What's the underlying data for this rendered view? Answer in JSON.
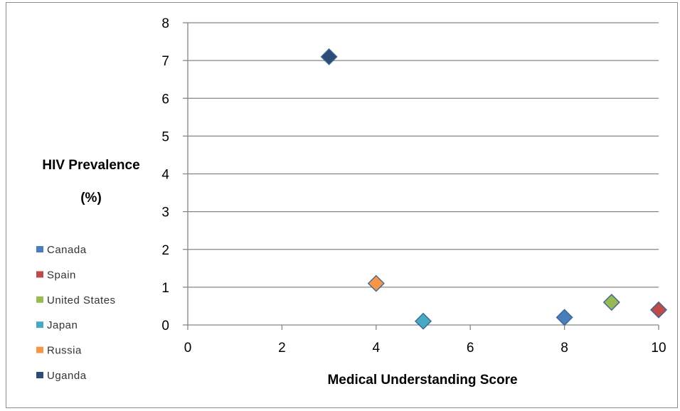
{
  "chart_data": {
    "type": "scatter",
    "title": "",
    "xlabel": "Medical Understanding Score",
    "ylabel_lines": [
      "HIV Prevalence",
      "(%)"
    ],
    "xlim": [
      0,
      10
    ],
    "ylim": [
      0,
      8
    ],
    "x_ticks": [
      "0",
      "2",
      "4",
      "6",
      "8",
      "10"
    ],
    "y_ticks": [
      "0",
      "1",
      "2",
      "3",
      "4",
      "5",
      "6",
      "7",
      "8"
    ],
    "grid": "horizontal",
    "legend_position": "left",
    "series": [
      {
        "name": "Canada",
        "color": "#4a7ebb",
        "points": [
          {
            "x": 8,
            "y": 0.2
          }
        ]
      },
      {
        "name": "Spain",
        "color": "#be4b48",
        "points": [
          {
            "x": 10,
            "y": 0.4
          }
        ]
      },
      {
        "name": "United States",
        "color": "#98b954",
        "points": [
          {
            "x": 9,
            "y": 0.6
          }
        ]
      },
      {
        "name": "Japan",
        "color": "#46aac5",
        "points": [
          {
            "x": 5,
            "y": 0.1
          }
        ]
      },
      {
        "name": "Russia",
        "color": "#f79646",
        "points": [
          {
            "x": 4,
            "y": 1.1
          }
        ]
      },
      {
        "name": "Uganda",
        "color": "#2c4d75",
        "points": [
          {
            "x": 3,
            "y": 7.1
          }
        ]
      }
    ]
  }
}
